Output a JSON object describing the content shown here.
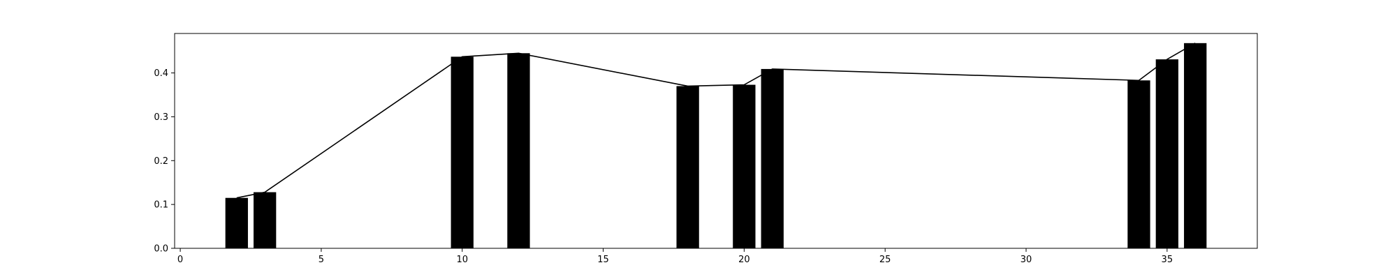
{
  "chart_data": {
    "type": "bar",
    "title": "",
    "xlabel": "",
    "ylabel": "",
    "xlim": [
      -0.2,
      38.2
    ],
    "ylim": [
      0,
      0.49
    ],
    "bar_width": 0.8,
    "grid": false,
    "colors": {
      "bar": "#000000",
      "line": "#000000",
      "axis": "#000000",
      "background": "#ffffff"
    },
    "xticks": [
      0,
      5,
      10,
      15,
      20,
      25,
      30,
      35
    ],
    "xtick_labels": [
      "0",
      "5",
      "10",
      "15",
      "20",
      "25",
      "30",
      "35"
    ],
    "yticks": [
      0.0,
      0.1,
      0.2,
      0.3,
      0.4
    ],
    "ytick_labels": [
      "0.0",
      "0.1",
      "0.2",
      "0.3",
      "0.4"
    ],
    "series": [
      {
        "name": "bars",
        "kind": "bar",
        "x": [
          2,
          3,
          10,
          12,
          18,
          20,
          21,
          34,
          35,
          36
        ],
        "values": [
          0.115,
          0.128,
          0.437,
          0.445,
          0.37,
          0.373,
          0.409,
          0.383,
          0.431,
          0.468
        ]
      },
      {
        "name": "line",
        "kind": "line",
        "x": [
          2,
          3,
          10,
          12,
          18,
          20,
          21,
          34,
          35,
          36
        ],
        "values": [
          0.115,
          0.128,
          0.437,
          0.445,
          0.37,
          0.373,
          0.409,
          0.383,
          0.431,
          0.468
        ]
      }
    ]
  }
}
